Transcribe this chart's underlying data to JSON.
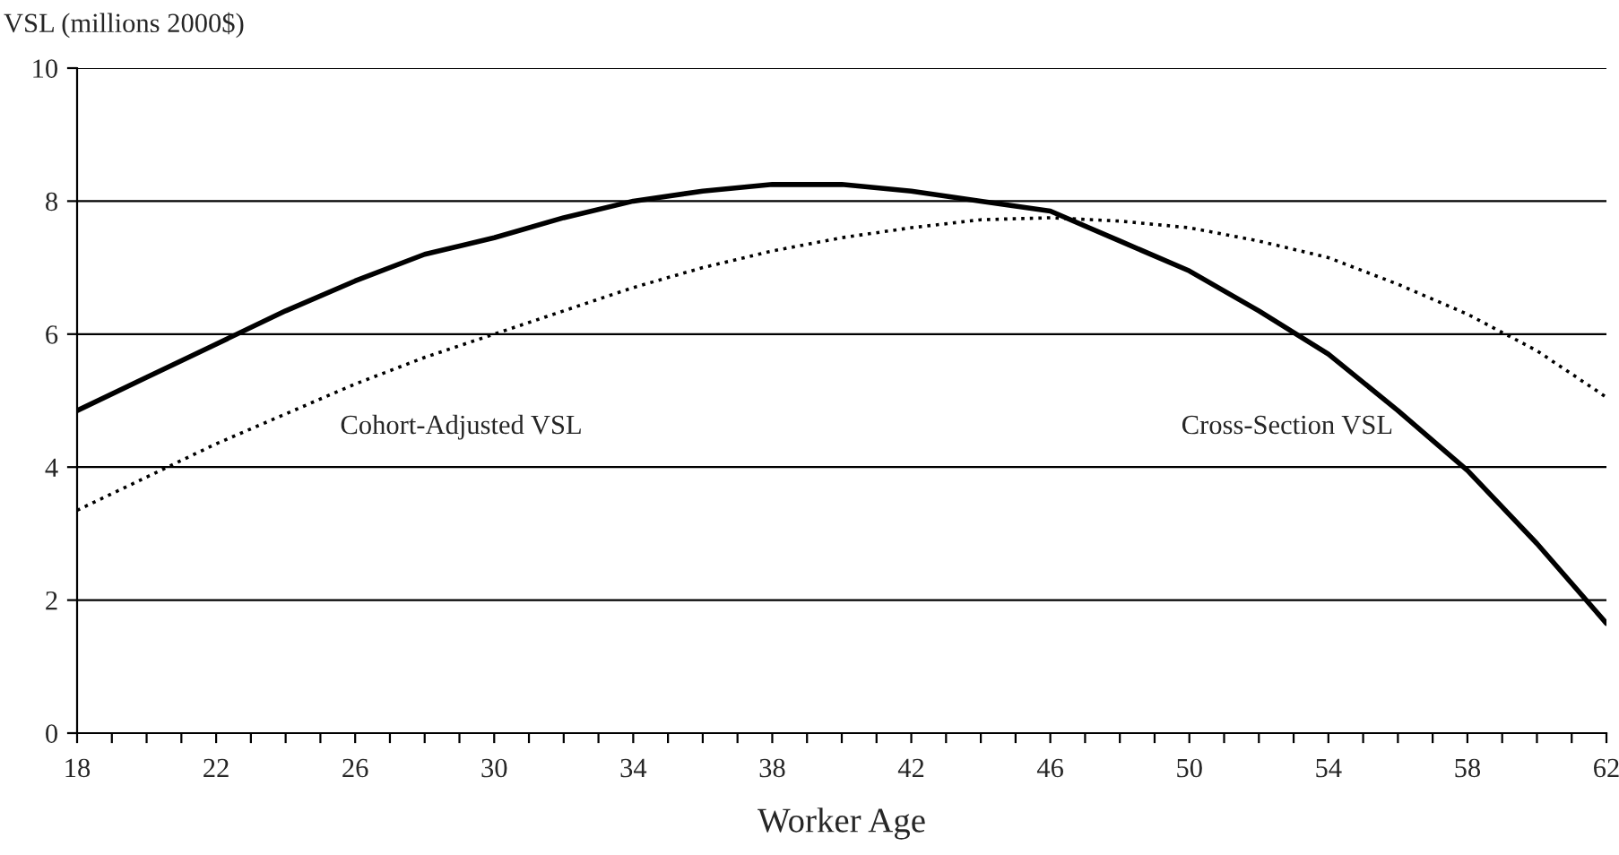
{
  "chart_data": {
    "type": "line",
    "xlabel": "Worker Age",
    "ylabel": "VSL (millions 2000$)",
    "x": [
      18,
      20,
      22,
      24,
      26,
      28,
      30,
      32,
      34,
      36,
      38,
      40,
      42,
      44,
      46,
      48,
      50,
      52,
      54,
      56,
      58,
      60,
      62
    ],
    "series": [
      {
        "color": "#000000",
        "line_style": "solid",
        "values": [
          4.85,
          5.35,
          5.85,
          6.35,
          6.8,
          7.2,
          7.45,
          7.75,
          8.0,
          8.15,
          8.25,
          8.25,
          8.15,
          8.0,
          7.85,
          7.4,
          6.95,
          6.35,
          5.7,
          4.85,
          3.95,
          2.85,
          1.65
        ]
      },
      {
        "color": "#000000",
        "line_style": "dotted",
        "values": [
          3.35,
          3.85,
          4.35,
          4.8,
          5.25,
          5.65,
          6.0,
          6.35,
          6.7,
          7.0,
          7.25,
          7.45,
          7.6,
          7.72,
          7.75,
          7.7,
          7.6,
          7.4,
          7.15,
          6.75,
          6.3,
          5.75,
          5.05
        ]
      }
    ],
    "annotations": [
      "Cohort-Adjusted VSL",
      "Cross-Section VSL"
    ],
    "xlim": [
      18,
      62
    ],
    "ylim": [
      0,
      10
    ],
    "xticks": [
      18,
      {
        "value": 19,
        "label": null
      },
      {
        "value": 20,
        "label": null
      },
      {
        "value": 21,
        "label": null
      },
      22,
      {
        "value": 23,
        "label": null
      },
      {
        "value": 24,
        "label": null
      },
      {
        "value": 25,
        "label": null
      },
      26,
      {
        "value": 27,
        "label": null
      },
      {
        "value": 28,
        "label": null
      },
      {
        "value": 29,
        "label": null
      },
      30,
      {
        "value": 31,
        "label": null
      },
      {
        "value": 32,
        "label": null
      },
      {
        "value": 33,
        "label": null
      },
      34,
      {
        "value": 35,
        "label": null
      },
      {
        "value": 36,
        "label": null
      },
      {
        "value": 37,
        "label": null
      },
      38,
      {
        "value": 39,
        "label": null
      },
      {
        "value": 40,
        "label": null
      },
      {
        "value": 41,
        "label": null
      },
      42,
      {
        "value": 43,
        "label": null
      },
      {
        "value": 44,
        "label": null
      },
      {
        "value": 45,
        "label": null
      },
      46,
      {
        "value": 47,
        "label": null
      },
      {
        "value": 48,
        "label": null
      },
      {
        "value": 49,
        "label": null
      },
      50,
      {
        "value": 51,
        "label": null
      },
      {
        "value": 52,
        "label": null
      },
      {
        "value": 53,
        "label": null
      },
      54,
      {
        "value": 55,
        "label": null
      },
      {
        "value": 56,
        "label": null
      },
      {
        "value": 57,
        "label": null
      },
      58,
      {
        "value": 59,
        "label": null
      },
      {
        "value": 60,
        "label": null
      },
      {
        "value": 61,
        "label": null
      },
      62
    ],
    "yticks": [
      0,
      2,
      4,
      6,
      8,
      10
    ],
    "grid": "y",
    "legend": false
  }
}
